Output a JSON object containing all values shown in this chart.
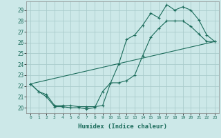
{
  "xlabel": "Humidex (Indice chaleur)",
  "bg_color": "#cce8e8",
  "grid_color": "#aacccc",
  "line_color": "#1a6b5a",
  "xlim": [
    -0.5,
    23.5
  ],
  "ylim": [
    19.5,
    29.8
  ],
  "xticks": [
    0,
    1,
    2,
    3,
    4,
    5,
    6,
    7,
    8,
    9,
    10,
    11,
    12,
    13,
    14,
    15,
    16,
    17,
    18,
    19,
    20,
    21,
    22,
    23
  ],
  "yticks": [
    20,
    21,
    22,
    23,
    24,
    25,
    26,
    27,
    28,
    29
  ],
  "line1_x": [
    0,
    1,
    2,
    3,
    4,
    5,
    6,
    7,
    8,
    9,
    10,
    11,
    12,
    13,
    14,
    15,
    16,
    17,
    18,
    19,
    20,
    21,
    22,
    23
  ],
  "line1_y": [
    22.2,
    21.5,
    21.0,
    20.1,
    20.1,
    20.0,
    20.0,
    19.9,
    20.0,
    21.5,
    22.3,
    24.0,
    26.3,
    26.7,
    27.6,
    28.7,
    28.3,
    29.5,
    29.0,
    29.3,
    29.0,
    28.1,
    26.7,
    26.1
  ],
  "line2_x": [
    0,
    1,
    2,
    3,
    4,
    5,
    6,
    7,
    8,
    9,
    10,
    11,
    12,
    13,
    14,
    15,
    16,
    17,
    18,
    19,
    20,
    21,
    22,
    23
  ],
  "line2_y": [
    22.2,
    21.5,
    21.2,
    20.2,
    20.2,
    20.2,
    20.1,
    20.1,
    20.1,
    20.2,
    22.3,
    22.3,
    22.5,
    23.0,
    24.8,
    26.5,
    27.3,
    28.0,
    28.0,
    28.0,
    27.5,
    26.8,
    26.1,
    26.1
  ],
  "line3_x": [
    0,
    23
  ],
  "line3_y": [
    22.2,
    26.1
  ]
}
